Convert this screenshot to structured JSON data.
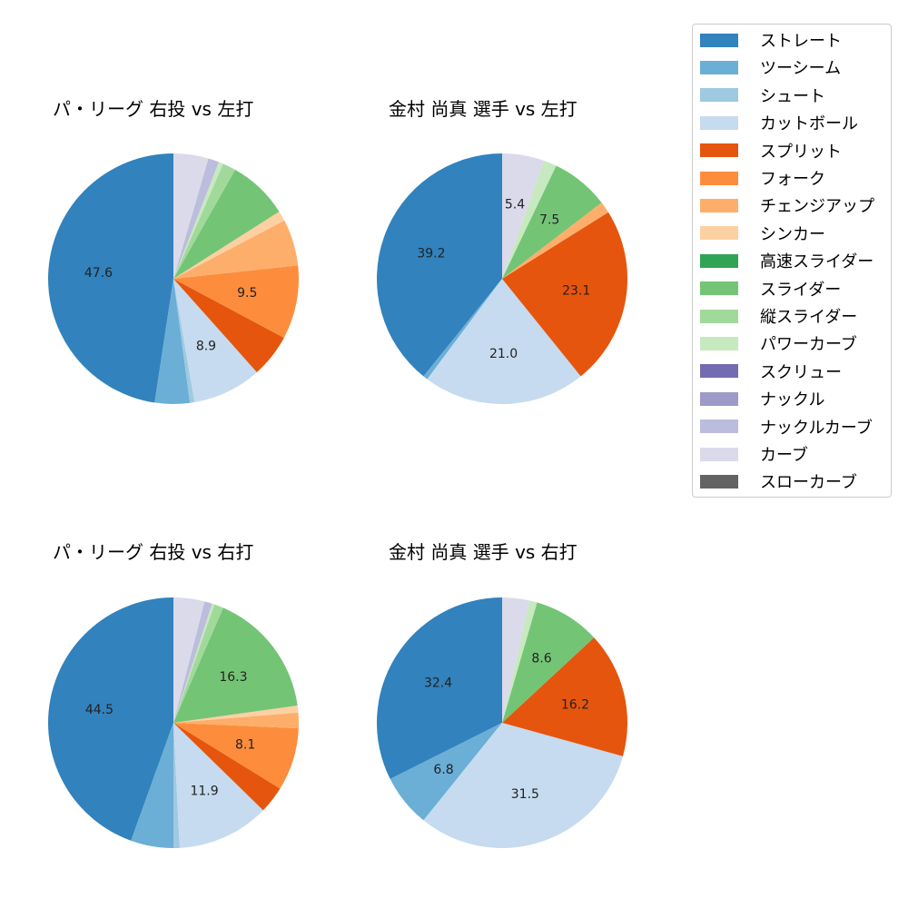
{
  "chart_data": [
    {
      "type": "pie",
      "title": "パ・リーグ 右投 vs 左打",
      "categories": [
        "ストレート",
        "ツーシーム",
        "シュート",
        "カットボール",
        "スプリット",
        "フォーク",
        "チェンジアップ",
        "シンカー",
        "スライダー",
        "縦スライダー",
        "パワーカーブ",
        "ナックルカーブ",
        "カーブ"
      ],
      "values": [
        47.6,
        4.5,
        0.6,
        8.9,
        5.6,
        9.5,
        6.0,
        1.3,
        7.8,
        1.7,
        0.6,
        1.4,
        4.5
      ],
      "labeled_values": {
        "ストレート": 47.6,
        "カットボール": 8.9,
        "フォーク": 9.5
      }
    },
    {
      "type": "pie",
      "title": "金村 尚真 選手 vs 左打",
      "categories": [
        "ストレート",
        "ツーシーム",
        "カットボール",
        "スプリット",
        "チェンジアップ",
        "スライダー",
        "パワーカーブ",
        "カーブ"
      ],
      "values": [
        39.2,
        0.6,
        21.0,
        23.1,
        1.5,
        7.5,
        1.7,
        5.4
      ],
      "labeled_values": {
        "ストレート": 39.2,
        "カットボール": 21.0,
        "スプリット": 23.1,
        "スライダー": 7.5,
        "カーブ": 5.4
      }
    },
    {
      "type": "pie",
      "title": "パ・リーグ 右投 vs 右打",
      "categories": [
        "ストレート",
        "ツーシーム",
        "シュート",
        "カットボール",
        "スプリット",
        "フォーク",
        "チェンジアップ",
        "シンカー",
        "スライダー",
        "縦スライダー",
        "パワーカーブ",
        "ナックルカーブ",
        "カーブ"
      ],
      "values": [
        44.5,
        5.5,
        0.8,
        11.9,
        3.5,
        8.1,
        2.0,
        0.9,
        16.3,
        1.2,
        0.3,
        1.0,
        4.0
      ],
      "labeled_values": {
        "ストレート": 44.5,
        "カットボール": 11.9,
        "フォーク": 8.1,
        "スライダー": 16.3
      }
    },
    {
      "type": "pie",
      "title": "金村 尚真 選手 vs 右打",
      "categories": [
        "ストレート",
        "ツーシーム",
        "カットボール",
        "スプリット",
        "スライダー",
        "パワーカーブ",
        "カーブ"
      ],
      "values": [
        32.4,
        6.8,
        31.5,
        16.2,
        8.6,
        1.0,
        3.5
      ],
      "labeled_values": {
        "ストレート": 32.4,
        "ツーシーム": 6.8,
        "カットボール": 31.5,
        "スプリット": 16.2,
        "スライダー": 8.6
      }
    }
  ],
  "legend": {
    "position": "upper right",
    "items": [
      {
        "label": "ストレート",
        "color": "#3182bd"
      },
      {
        "label": "ツーシーム",
        "color": "#6baed6"
      },
      {
        "label": "シュート",
        "color": "#9ecae1"
      },
      {
        "label": "カットボール",
        "color": "#c6dbef"
      },
      {
        "label": "スプリット",
        "color": "#e6550d"
      },
      {
        "label": "フォーク",
        "color": "#fd8d3c"
      },
      {
        "label": "チェンジアップ",
        "color": "#fdae6b"
      },
      {
        "label": "シンカー",
        "color": "#fdd0a2"
      },
      {
        "label": "高速スライダー",
        "color": "#31a354"
      },
      {
        "label": "スライダー",
        "color": "#74c476"
      },
      {
        "label": "縦スライダー",
        "color": "#a1d99b"
      },
      {
        "label": "パワーカーブ",
        "color": "#c7e9c0"
      },
      {
        "label": "スクリュー",
        "color": "#756bb1"
      },
      {
        "label": "ナックル",
        "color": "#9e9ac8"
      },
      {
        "label": "ナックルカーブ",
        "color": "#bcbddc"
      },
      {
        "label": "カーブ",
        "color": "#dadaeb"
      },
      {
        "label": "スローカーブ",
        "color": "#636363"
      }
    ]
  },
  "titles": {
    "tl": "パ・リーグ 右投 vs 左打",
    "tr": "金村 尚真 選手 vs 左打",
    "bl": "パ・リーグ 右投 vs 右打",
    "br": "金村 尚真 選手 vs 右打"
  }
}
